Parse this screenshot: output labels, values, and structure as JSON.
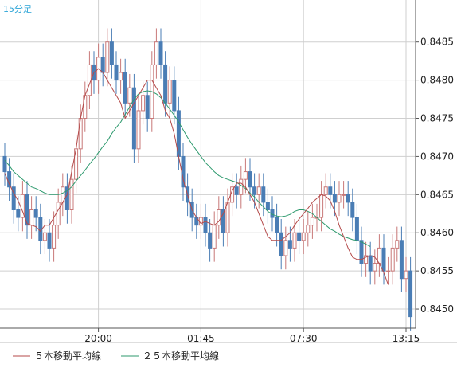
{
  "chart_data": {
    "type": "candlestick",
    "timeframe_label": "15分足",
    "y_ticks": [
      "0.8485",
      "0.8480",
      "0.8475",
      "0.8470",
      "0.8465",
      "0.8460",
      "0.8455",
      "0.8450"
    ],
    "y_tick_values": [
      0.8485,
      0.848,
      0.8475,
      0.847,
      0.8465,
      0.846,
      0.8455,
      0.845
    ],
    "ylim": [
      0.84475,
      0.84905
    ],
    "x_ticks": [
      "20:00",
      "01:45",
      "07:30",
      "13:15"
    ],
    "x_tick_index": [
      21,
      44,
      67,
      90
    ],
    "grid": true,
    "legend_position": "bottom-left",
    "colors": {
      "up": "#c87878",
      "down": "#4a7db5",
      "ma5": "#b44a4a",
      "ma25": "#2e9a6e",
      "grid": "#cfcfcf",
      "axis": "#555555",
      "label": "#222222",
      "timeframe": "#29a3d6"
    },
    "series": [
      {
        "name": "５本移動平均線",
        "color": "#b44a4a"
      },
      {
        "name": "２５本移動平均線",
        "color": "#2e9a6e"
      }
    ],
    "close": [
      0.8468,
      0.8466,
      0.8463,
      0.8462,
      0.8465,
      0.8461,
      0.8463,
      0.8462,
      0.8459,
      0.846,
      0.8458,
      0.8461,
      0.8464,
      0.8466,
      0.8463,
      0.8467,
      0.8471,
      0.8475,
      0.8478,
      0.8482,
      0.848,
      0.8483,
      0.8481,
      0.8485,
      0.8482,
      0.848,
      0.8481,
      0.8477,
      0.8479,
      0.8471,
      0.8476,
      0.8478,
      0.8475,
      0.8482,
      0.8485,
      0.8482,
      0.8477,
      0.848,
      0.8476,
      0.847,
      0.8466,
      0.8464,
      0.8462,
      0.8461,
      0.8462,
      0.846,
      0.8458,
      0.8461,
      0.8463,
      0.846,
      0.8464,
      0.8466,
      0.8465,
      0.8467,
      0.8468,
      0.8466,
      0.8465,
      0.8466,
      0.8464,
      0.8463,
      0.8462,
      0.846,
      0.8457,
      0.8459,
      0.8458,
      0.846,
      0.8459,
      0.846,
      0.8461,
      0.8462,
      0.8462,
      0.8465,
      0.8466,
      0.8465,
      0.8464,
      0.8465,
      0.8465,
      0.8464,
      0.8462,
      0.8459,
      0.8456,
      0.8457,
      0.8455,
      0.8456,
      0.8458,
      0.8455,
      0.8455,
      0.8458,
      0.8459,
      0.8454,
      0.8455,
      0.8449
    ],
    "ma5": [
      0.84678,
      0.84664,
      0.84652,
      0.84642,
      0.84628,
      0.84612,
      0.8461,
      0.84608,
      0.84602,
      0.8461,
      0.8461,
      0.8462,
      0.8463,
      0.8464,
      0.8465,
      0.8468,
      0.8471,
      0.8475,
      0.8478,
      0.84795,
      0.8481,
      0.84815,
      0.8481,
      0.848,
      0.8479,
      0.8478,
      0.8477,
      0.8475,
      0.8476,
      0.8477,
      0.8478,
      0.8479,
      0.848,
      0.848,
      0.8479,
      0.8478,
      0.8476,
      0.8475,
      0.8473,
      0.847,
      0.8467,
      0.8465,
      0.8463,
      0.8462,
      0.84612,
      0.84615,
      0.84612,
      0.8461,
      0.84615,
      0.84625,
      0.8464,
      0.84655,
      0.84665,
      0.84665,
      0.8466,
      0.8465,
      0.8464,
      0.84625,
      0.8461,
      0.84595,
      0.8459,
      0.8459,
      0.8459,
      0.84595,
      0.846,
      0.8461,
      0.84618,
      0.84625,
      0.84632,
      0.8464,
      0.84645,
      0.8465,
      0.84648,
      0.84642,
      0.84628,
      0.8461,
      0.84595,
      0.8458,
      0.84568,
      0.84565,
      0.84565,
      0.84568,
      0.8457,
      0.84568,
      0.8456,
      0.84548,
      0.84532
    ],
    "ma25": [
      0.84695,
      0.84688,
      0.8468,
      0.84675,
      0.8467,
      0.84665,
      0.8466,
      0.84658,
      0.84655,
      0.84652,
      0.8465,
      0.8465,
      0.8465,
      0.84652,
      0.84655,
      0.8466,
      0.84668,
      0.84675,
      0.84682,
      0.8469,
      0.84697,
      0.84705,
      0.84713,
      0.8472,
      0.8473,
      0.84738,
      0.84745,
      0.84755,
      0.84765,
      0.84775,
      0.84782,
      0.84785,
      0.84786,
      0.84785,
      0.84782,
      0.84777,
      0.8477,
      0.84762,
      0.84754,
      0.84745,
      0.84735,
      0.84725,
      0.84716,
      0.84708,
      0.847,
      0.84692,
      0.84686,
      0.8468,
      0.84675,
      0.84672,
      0.8467,
      0.84668,
      0.84666,
      0.84662,
      0.84658,
      0.84652,
      0.84647,
      0.8464,
      0.84634,
      0.84628,
      0.84624,
      0.84622,
      0.84621,
      0.84622,
      0.84624,
      0.84628,
      0.8463,
      0.8463,
      0.84628,
      0.84625,
      0.8462,
      0.84615,
      0.8461,
      0.84605,
      0.84602,
      0.84598,
      0.84595,
      0.84593,
      0.84591,
      0.8459,
      0.84588,
      0.84585,
      0.84582
    ]
  }
}
